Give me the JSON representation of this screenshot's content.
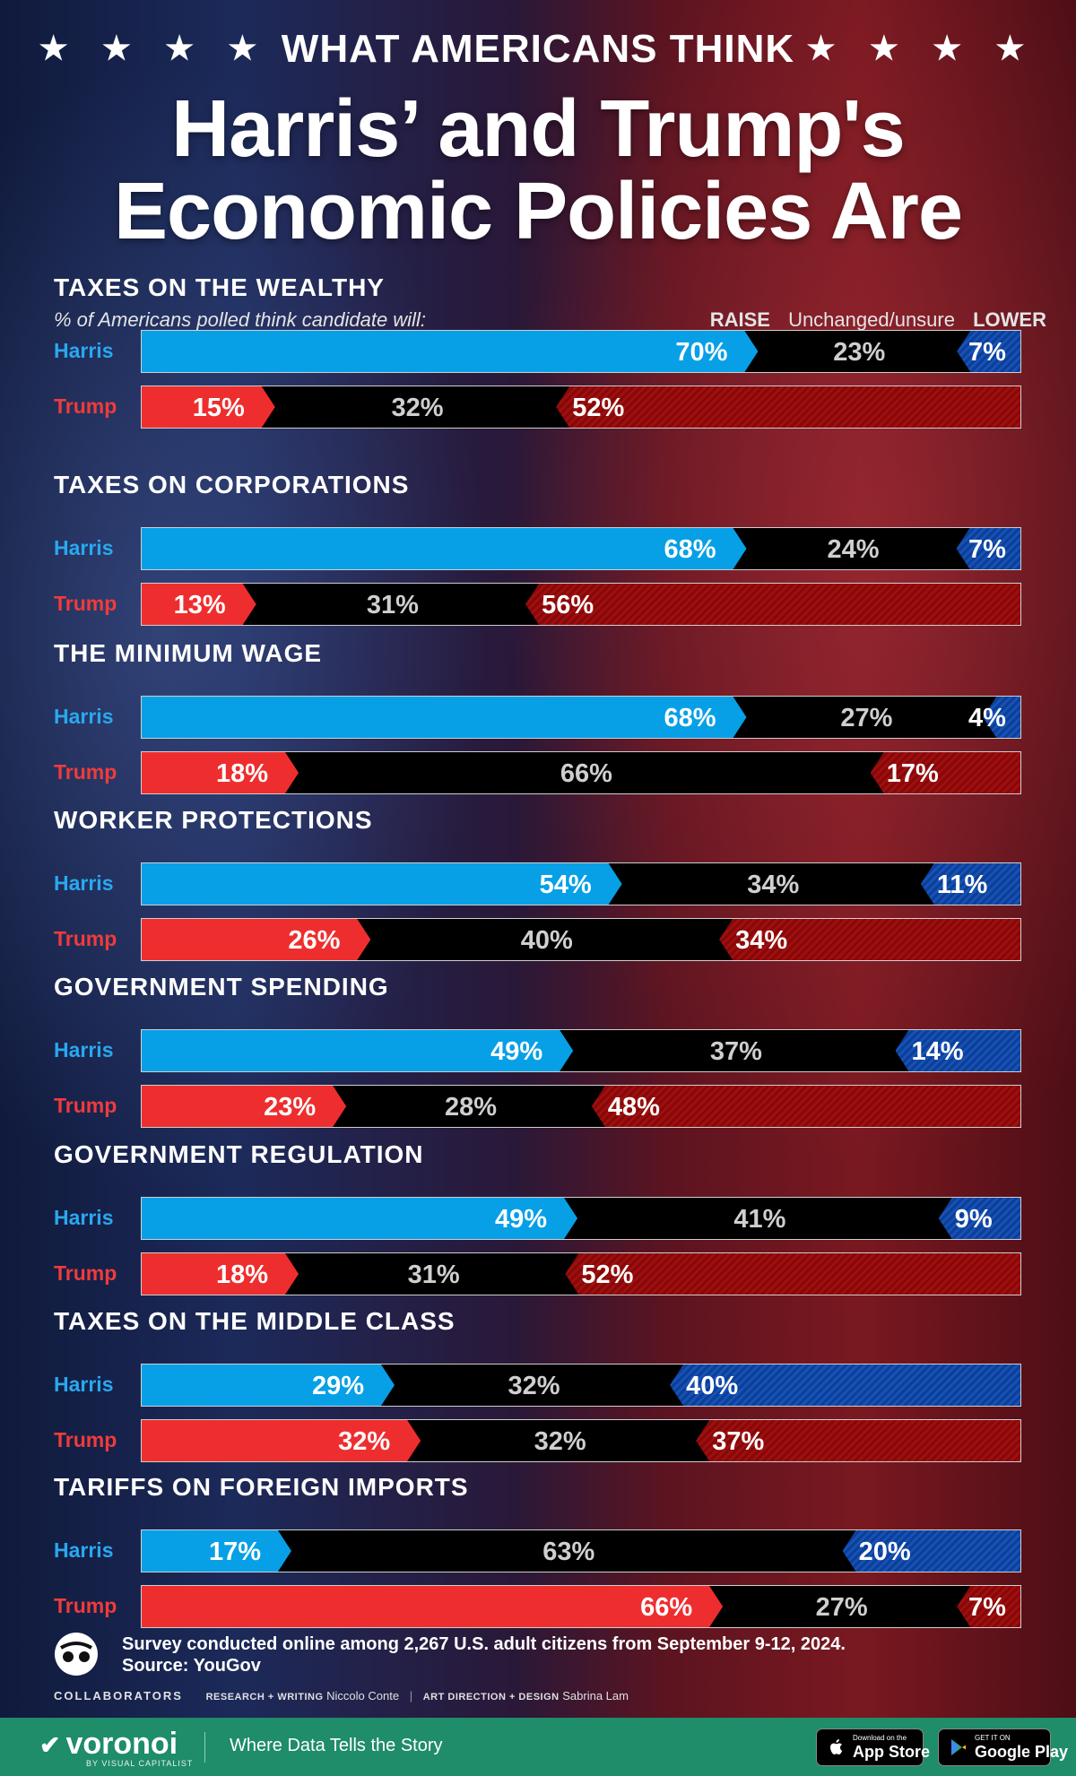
{
  "header": {
    "kicker": "WHAT AMERICANS THINK",
    "stars_left": "★ ★ ★ ★",
    "stars_right": "★ ★ ★ ★",
    "title_line1": "Harris’ and Trump's",
    "title_line2": "Economic Policies Are"
  },
  "subtitle": "% of Americans polled think candidate will:",
  "legend": {
    "raise": "RAISE",
    "unchanged": "Unchanged/unsure",
    "lower": "LOWER"
  },
  "colors": {
    "harris_raise": "#07a0e6",
    "harris_lower": "#1652b8",
    "trump_raise": "#ee2e2e",
    "trump_lower": "#a00f0f",
    "unchanged": "#000000",
    "harris_label": "#29a8ef",
    "trump_label": "#f03b3b",
    "footer_band": "#1f8c6a"
  },
  "chart_data": {
    "type": "bar",
    "orientation": "horizontal",
    "stacked": true,
    "unit": "%",
    "subtitle": "% of Americans polled think candidate will:",
    "stack_order": [
      "RAISE",
      "Unchanged/unsure",
      "LOWER"
    ],
    "candidates": [
      "Harris",
      "Trump"
    ],
    "categories": [
      {
        "name": "TAXES ON THE WEALTHY",
        "harris": {
          "raise": 70,
          "unchanged": 23,
          "lower": 7
        },
        "trump": {
          "raise": 15,
          "unchanged": 32,
          "lower": 52
        }
      },
      {
        "name": "TAXES ON CORPORATIONS",
        "harris": {
          "raise": 68,
          "unchanged": 24,
          "lower": 7
        },
        "trump": {
          "raise": 13,
          "unchanged": 31,
          "lower": 56
        }
      },
      {
        "name": "THE MINIMUM WAGE",
        "harris": {
          "raise": 68,
          "unchanged": 27,
          "lower": 4
        },
        "trump": {
          "raise": 18,
          "unchanged": 66,
          "lower": 17
        }
      },
      {
        "name": "WORKER PROTECTIONS",
        "harris": {
          "raise": 54,
          "unchanged": 34,
          "lower": 11
        },
        "trump": {
          "raise": 26,
          "unchanged": 40,
          "lower": 34
        }
      },
      {
        "name": "GOVERNMENT SPENDING",
        "harris": {
          "raise": 49,
          "unchanged": 37,
          "lower": 14
        },
        "trump": {
          "raise": 23,
          "unchanged": 28,
          "lower": 48
        }
      },
      {
        "name": "GOVERNMENT REGULATION",
        "harris": {
          "raise": 49,
          "unchanged": 41,
          "lower": 9
        },
        "trump": {
          "raise": 18,
          "unchanged": 31,
          "lower": 52
        }
      },
      {
        "name": "TAXES ON THE MIDDLE CLASS",
        "harris": {
          "raise": 29,
          "unchanged": 32,
          "lower": 40
        },
        "trump": {
          "raise": 32,
          "unchanged": 32,
          "lower": 37
        }
      },
      {
        "name": "TARIFFS ON FOREIGN IMPORTS",
        "harris": {
          "raise": 17,
          "unchanged": 63,
          "lower": 20
        },
        "trump": {
          "raise": 66,
          "unchanged": 27,
          "lower": 7
        }
      }
    ]
  },
  "footer": {
    "note_line1": "Survey conducted online among 2,267 U.S. adult citizens from September 9-12, 2024.",
    "note_line2": "Source: YouGov",
    "collaborators_label": "COLLABORATORS",
    "research_role": "RESEARCH + WRITING",
    "research_name": "Niccolo Conte",
    "design_role": "ART DIRECTION + DESIGN",
    "design_name": "Sabrina Lam",
    "brand": "voronoi",
    "brand_sub": "BY VISUAL CAPITALIST",
    "tagline": "Where Data Tells the Story",
    "appstore_small": "Download on the",
    "appstore_big": "App Store",
    "googleplay_small": "GET IT ON",
    "googleplay_big": "Google Play"
  }
}
